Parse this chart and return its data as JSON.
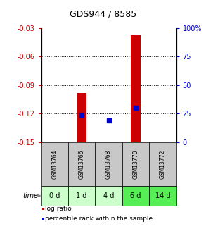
{
  "title": "GDS944 / 8585",
  "samples": [
    "GSM13764",
    "GSM13766",
    "GSM13768",
    "GSM13770",
    "GSM13772"
  ],
  "time_labels": [
    "0 d",
    "1 d",
    "4 d",
    "6 d",
    "14 d"
  ],
  "log_ratios": [
    null,
    -0.098,
    -0.151,
    -0.038,
    null
  ],
  "percentile_ranks": [
    null,
    24,
    19,
    30,
    null
  ],
  "ylim_left": [
    -0.15,
    -0.03
  ],
  "ylim_right": [
    0,
    100
  ],
  "yticks_left": [
    -0.15,
    -0.12,
    -0.09,
    -0.06,
    -0.03
  ],
  "yticks_right": [
    0,
    25,
    50,
    75,
    100
  ],
  "left_color": "#cc0000",
  "right_color": "#0000cc",
  "bar_width": 0.35,
  "cell_color_gsm": "#c8c8c8",
  "time_row_colors": [
    "#ccffcc",
    "#ccffcc",
    "#ccffcc",
    "#55ee55",
    "#55ee55"
  ],
  "background": "#ffffff",
  "title_fontsize": 9,
  "tick_fontsize": 7,
  "gsm_fontsize": 5.5,
  "time_fontsize": 7,
  "legend_fontsize": 6.5
}
